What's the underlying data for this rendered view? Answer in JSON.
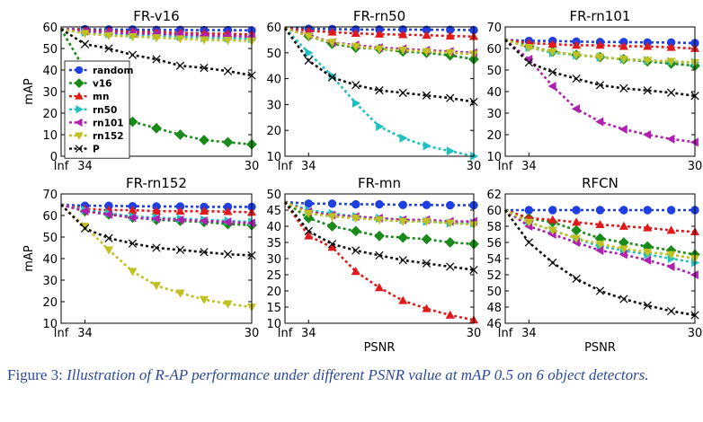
{
  "figure": {
    "caption_label": "Figure 3:",
    "caption_text": "Illustration of R-AP performance under different PSNR value at mAP 0.5 on 6 object detectors.",
    "series_styles": [
      {
        "key": "random",
        "color": "#1f3fe0",
        "marker": "circle"
      },
      {
        "key": "v16",
        "color": "#1a8a1a",
        "marker": "diamond"
      },
      {
        "key": "mn",
        "color": "#e01a1a",
        "marker": "triangle-up"
      },
      {
        "key": "rn50",
        "color": "#20c0c0",
        "marker": "triangle-right"
      },
      {
        "key": "rn101",
        "color": "#b020b0",
        "marker": "triangle-left"
      },
      {
        "key": "rn152",
        "color": "#c0c020",
        "marker": "triangle-down"
      },
      {
        "key": "P",
        "color": "#111111",
        "marker": "x"
      }
    ]
  },
  "chart_data": [
    {
      "type": "line",
      "title": "FR-v16",
      "ylabel": "mAP",
      "xlabel": "",
      "x_ticks": [
        "Inf",
        "34",
        "30"
      ],
      "x": [
        0,
        1,
        2,
        3,
        4,
        5,
        6,
        7,
        8
      ],
      "ylim": [
        0,
        60
      ],
      "y_ticks": [
        0,
        10,
        20,
        30,
        40,
        50,
        60
      ],
      "legend": {
        "placement": "middle-left",
        "entries": [
          "random",
          "v16",
          "mn",
          "rn50",
          "rn101",
          "rn152",
          "P"
        ]
      },
      "series": [
        {
          "name": "random",
          "values": [
            59,
            59,
            58.8,
            58.8,
            58.6,
            58.6,
            58.5,
            58.5,
            58.4
          ]
        },
        {
          "name": "v16",
          "values": [
            59,
            40,
            24,
            16,
            13,
            10,
            7.5,
            6.5,
            5.5
          ]
        },
        {
          "name": "mn",
          "values": [
            59,
            58.5,
            58,
            57.8,
            57.5,
            57.2,
            57,
            56.8,
            56.5
          ]
        },
        {
          "name": "rn50",
          "values": [
            59,
            57.5,
            56.8,
            56.3,
            56,
            55.5,
            55,
            54.8,
            54.5
          ]
        },
        {
          "name": "rn101",
          "values": [
            59,
            58,
            57.5,
            57,
            56.8,
            56.5,
            56,
            55.8,
            55.5
          ]
        },
        {
          "name": "rn152",
          "values": [
            59,
            57,
            56,
            55.5,
            55,
            54.5,
            54,
            53.8,
            53.5
          ]
        },
        {
          "name": "P",
          "values": [
            59,
            52,
            50,
            47,
            45,
            42,
            41,
            39.5,
            37.5
          ]
        }
      ]
    },
    {
      "type": "line",
      "title": "FR-rn50",
      "ylabel": "",
      "xlabel": "",
      "x_ticks": [
        "Inf",
        "34",
        "30"
      ],
      "x": [
        0,
        1,
        2,
        3,
        4,
        5,
        6,
        7,
        8
      ],
      "ylim": [
        10,
        60
      ],
      "y_ticks": [
        10,
        20,
        30,
        40,
        50,
        60
      ],
      "legend": null,
      "series": [
        {
          "name": "random",
          "values": [
            59.5,
            59.3,
            59.2,
            59,
            59,
            59,
            58.9,
            58.9,
            58.8
          ]
        },
        {
          "name": "v16",
          "values": [
            59.5,
            56.5,
            53.5,
            52,
            51.5,
            50.5,
            50,
            49,
            47.5
          ]
        },
        {
          "name": "mn",
          "values": [
            59.5,
            58.5,
            58,
            57.5,
            57.2,
            57,
            56.8,
            56.5,
            56.3
          ]
        },
        {
          "name": "rn50",
          "values": [
            59.5,
            50,
            41,
            30.5,
            21.5,
            17,
            14,
            12,
            10
          ]
        },
        {
          "name": "rn101",
          "values": [
            59.5,
            57,
            54,
            53,
            52,
            51.5,
            51,
            50.5,
            50
          ]
        },
        {
          "name": "rn152",
          "values": [
            59.5,
            56.5,
            54,
            52.5,
            51.5,
            51,
            50.5,
            50,
            49.5
          ]
        },
        {
          "name": "P",
          "values": [
            59.5,
            47,
            40.5,
            37.5,
            35.5,
            34.5,
            33.5,
            32.5,
            31
          ]
        }
      ]
    },
    {
      "type": "line",
      "title": "FR-rn101",
      "ylabel": "",
      "xlabel": "",
      "x_ticks": [
        "Inf",
        "34",
        "30"
      ],
      "x": [
        0,
        1,
        2,
        3,
        4,
        5,
        6,
        7,
        8
      ],
      "ylim": [
        10,
        70
      ],
      "y_ticks": [
        10,
        20,
        30,
        40,
        50,
        60,
        70
      ],
      "legend": null,
      "series": [
        {
          "name": "random",
          "values": [
            64,
            63.5,
            63.5,
            63.2,
            63,
            63,
            62.8,
            62.8,
            62.5
          ]
        },
        {
          "name": "v16",
          "values": [
            64,
            61,
            58.5,
            57,
            56,
            55,
            54,
            53,
            52
          ]
        },
        {
          "name": "mn",
          "values": [
            64,
            62.5,
            62,
            61.5,
            61.5,
            61,
            61,
            60.5,
            60
          ]
        },
        {
          "name": "rn50",
          "values": [
            64,
            60.5,
            58,
            57,
            56,
            55,
            54.5,
            54,
            53.5
          ]
        },
        {
          "name": "rn101",
          "values": [
            64,
            55,
            42.5,
            32,
            26,
            22.5,
            20,
            18,
            16.5
          ]
        },
        {
          "name": "rn152",
          "values": [
            64,
            60.5,
            58.5,
            57,
            56,
            55,
            54.5,
            54,
            53.5
          ]
        },
        {
          "name": "P",
          "values": [
            64,
            53.5,
            49,
            46,
            43,
            41.5,
            40.5,
            39.5,
            38
          ]
        }
      ]
    },
    {
      "type": "line",
      "title": "FR-rn152",
      "ylabel": "mAP",
      "xlabel": "",
      "x_ticks": [
        "Inf",
        "34",
        "30"
      ],
      "x": [
        0,
        1,
        2,
        3,
        4,
        5,
        6,
        7,
        8
      ],
      "ylim": [
        10,
        70
      ],
      "y_ticks": [
        10,
        20,
        30,
        40,
        50,
        60,
        70
      ],
      "legend": null,
      "series": [
        {
          "name": "random",
          "values": [
            65,
            64.5,
            64.5,
            64.3,
            64.2,
            64.2,
            64,
            64,
            64
          ]
        },
        {
          "name": "v16",
          "values": [
            65,
            62,
            60.5,
            59,
            58,
            57.5,
            57,
            56,
            55.5
          ]
        },
        {
          "name": "mn",
          "values": [
            65,
            63,
            62.5,
            62.5,
            62,
            62,
            62,
            61.8,
            61.5
          ]
        },
        {
          "name": "rn50",
          "values": [
            65,
            62.5,
            61,
            59.5,
            59,
            58.5,
            58,
            57.5,
            57
          ]
        },
        {
          "name": "rn101",
          "values": [
            65,
            62,
            60.5,
            59,
            58.5,
            58,
            57.5,
            57,
            56.5
          ]
        },
        {
          "name": "rn152",
          "values": [
            65,
            55,
            44,
            34,
            27.5,
            24,
            21,
            19,
            17.5
          ]
        },
        {
          "name": "P",
          "values": [
            65,
            54,
            49.5,
            47,
            45,
            44,
            43,
            42,
            41.5
          ]
        }
      ]
    },
    {
      "type": "line",
      "title": "FR-mn",
      "ylabel": "",
      "xlabel": "PSNR",
      "x_ticks": [
        "Inf",
        "34",
        "30"
      ],
      "x": [
        0,
        1,
        2,
        3,
        4,
        5,
        6,
        7,
        8
      ],
      "ylim": [
        10,
        50
      ],
      "y_ticks": [
        10,
        15,
        20,
        25,
        30,
        35,
        40,
        45,
        50
      ],
      "legend": null,
      "series": [
        {
          "name": "random",
          "values": [
            47.5,
            47,
            47,
            46.8,
            46.8,
            46.6,
            46.6,
            46.5,
            46.5
          ]
        },
        {
          "name": "v16",
          "values": [
            47.5,
            42.5,
            40,
            38.5,
            37,
            36.5,
            36,
            35,
            34.5
          ]
        },
        {
          "name": "mn",
          "values": [
            47.5,
            37,
            33.5,
            26,
            21,
            17,
            14.5,
            12.5,
            11
          ]
        },
        {
          "name": "rn50",
          "values": [
            47.5,
            45,
            44,
            43,
            42.5,
            42,
            41.5,
            41,
            41
          ]
        },
        {
          "name": "rn101",
          "values": [
            47.5,
            44.5,
            43.5,
            43,
            42.5,
            42,
            42,
            41.5,
            41.5
          ]
        },
        {
          "name": "rn152",
          "values": [
            47.5,
            44,
            43,
            42.5,
            42,
            41.5,
            41.5,
            41,
            40.5
          ]
        },
        {
          "name": "P",
          "values": [
            47.5,
            38.5,
            34.5,
            32.5,
            31,
            29.5,
            28.5,
            27.5,
            26.5
          ]
        }
      ]
    },
    {
      "type": "line",
      "title": "RFCN",
      "ylabel": "",
      "xlabel": "PSNR",
      "x_ticks": [
        "Inf",
        "34",
        "30"
      ],
      "x": [
        0,
        1,
        2,
        3,
        4,
        5,
        6,
        7,
        8
      ],
      "ylim": [
        46,
        62
      ],
      "y_ticks": [
        46,
        48,
        50,
        52,
        54,
        56,
        58,
        60,
        62
      ],
      "legend": null,
      "series": [
        {
          "name": "random",
          "values": [
            60,
            60,
            60,
            60,
            60,
            60,
            60,
            60,
            60
          ]
        },
        {
          "name": "v16",
          "values": [
            60,
            59,
            58.5,
            57.5,
            56.5,
            56,
            55.5,
            55,
            54.5
          ]
        },
        {
          "name": "mn",
          "values": [
            60,
            59,
            58.8,
            58.5,
            58.2,
            58,
            57.8,
            57.5,
            57.3
          ]
        },
        {
          "name": "rn50",
          "values": [
            60,
            58.5,
            57.5,
            56.5,
            55.5,
            55,
            54.5,
            54,
            53.5
          ]
        },
        {
          "name": "rn101",
          "values": [
            60,
            58,
            57,
            56,
            55,
            54.5,
            53.8,
            53,
            52
          ]
        },
        {
          "name": "rn152",
          "values": [
            60,
            58.5,
            57.5,
            56.5,
            55.8,
            55.2,
            54.8,
            54.5,
            54
          ]
        },
        {
          "name": "P",
          "values": [
            60,
            56,
            53.5,
            51.5,
            50,
            49,
            48.2,
            47.5,
            47
          ]
        }
      ]
    }
  ]
}
